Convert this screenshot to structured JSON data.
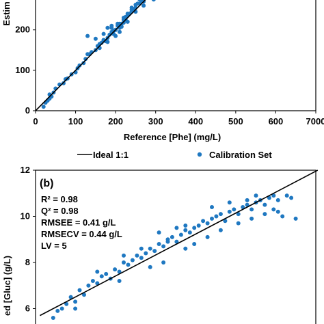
{
  "colors": {
    "point": "#1f78c1",
    "ideal_line": "#000000",
    "axis": "#000000"
  },
  "legend": {
    "ideal_label": "Ideal 1:1",
    "calibration_label": "Calibration Set"
  },
  "chart_data": [
    {
      "panel": "a",
      "type": "scatter",
      "xlabel": "Reference [Phe] (mg/L)",
      "ylabel": "Estim",
      "xlim": [
        0,
        700
      ],
      "ylim": [
        0,
        300
      ],
      "x_ticks": [
        "0",
        "100",
        "200",
        "300",
        "400",
        "500",
        "600",
        "7000"
      ],
      "y_ticks": [
        "0",
        "100",
        "200"
      ],
      "grid": false,
      "ideal_line": {
        "name": "Ideal 1:1",
        "x": [
          0,
          300
        ],
        "y": [
          0,
          300
        ]
      },
      "series": [
        {
          "name": "Calibration Set",
          "x": [
            20,
            25,
            30,
            35,
            40,
            45,
            35,
            50,
            60,
            70,
            75,
            80,
            90,
            100,
            105,
            110,
            120,
            125,
            130,
            135,
            140,
            150,
            155,
            160,
            165,
            170,
            175,
            180,
            185,
            190,
            195,
            200,
            205,
            210,
            215,
            220,
            225,
            230,
            240,
            250,
            260,
            270,
            280,
            290,
            130,
            150,
            170,
            180,
            190,
            200,
            210,
            220,
            230,
            240,
            250,
            260,
            200,
            190,
            210,
            230,
            250,
            270,
            280,
            240,
            220,
            210,
            180,
            160,
            170,
            195,
            205,
            215,
            225,
            235,
            245,
            255,
            265,
            275,
            285,
            295
          ],
          "y": [
            10,
            20,
            25,
            30,
            35,
            45,
            40,
            55,
            65,
            68,
            78,
            80,
            90,
            95,
            105,
            112,
            118,
            128,
            140,
            140,
            145,
            150,
            160,
            165,
            168,
            175,
            172,
            180,
            188,
            195,
            198,
            200,
            210,
            212,
            215,
            218,
            225,
            235,
            245,
            255,
            265,
            270,
            280,
            285,
            185,
            178,
            190,
            205,
            210,
            185,
            195,
            225,
            240,
            250,
            262,
            275,
            200,
            205,
            215,
            220,
            245,
            260,
            290,
            255,
            230,
            205,
            170,
            155,
            175,
            190,
            215,
            208,
            232,
            240,
            250,
            265,
            270,
            280,
            290,
            275
          ]
        }
      ]
    },
    {
      "panel": "b",
      "type": "scatter",
      "xlabel": "",
      "ylabel": "ed [Gluc] (g/L)",
      "ylim": [
        6,
        12
      ],
      "y_ticks": [
        "6",
        "8",
        "10",
        "12"
      ],
      "grid": false,
      "panel_label": "(b)",
      "annotations": {
        "r2": "R² = 0.98",
        "q2": "Q² = 0.98",
        "rmsee": "RMSEE = 0.41 g/L",
        "rmsecv": "RMSECV = 0.44 g/L",
        "lv": "LV = 5"
      },
      "ideal_line": {
        "name": "Ideal 1:1",
        "x": [
          5.7,
          12.0
        ],
        "y": [
          5.7,
          12.0
        ]
      },
      "series": [
        {
          "name": "Calibration Set",
          "x": [
            6.0,
            6.1,
            6.2,
            6.3,
            6.4,
            6.5,
            6.6,
            6.7,
            6.8,
            6.9,
            7.0,
            7.1,
            7.2,
            7.3,
            7.4,
            7.5,
            7.6,
            7.7,
            7.8,
            7.9,
            8.0,
            8.1,
            8.2,
            8.3,
            8.4,
            8.5,
            8.6,
            8.7,
            8.8,
            8.9,
            9.0,
            9.1,
            9.2,
            9.3,
            9.4,
            9.5,
            9.6,
            9.7,
            9.8,
            9.9,
            10.0,
            10.1,
            10.2,
            10.3,
            10.4,
            10.5,
            10.6,
            10.7,
            10.8,
            10.9,
            11.0,
            11.1,
            11.2,
            11.3,
            11.4,
            11.5,
            6.5,
            7.0,
            7.5,
            8.0,
            8.5,
            9.0,
            9.5,
            10.0,
            10.5,
            11.0,
            8.2,
            8.8,
            9.2,
            9.6,
            10.2,
            10.6,
            11.1,
            7.6,
            8.4,
            9.8,
            10.4,
            10.8,
            9.0,
            8.6
          ],
          "y": [
            5.6,
            5.9,
            6.0,
            6.2,
            6.5,
            6.3,
            6.8,
            6.6,
            7.0,
            7.2,
            7.1,
            7.4,
            7.5,
            7.3,
            7.7,
            7.6,
            8.0,
            7.9,
            8.1,
            8.3,
            8.2,
            8.4,
            8.6,
            8.5,
            8.8,
            8.7,
            9.0,
            9.1,
            8.9,
            9.2,
            9.4,
            9.3,
            9.5,
            9.6,
            9.8,
            9.7,
            9.9,
            10.0,
            10.1,
            9.8,
            10.2,
            10.3,
            10.1,
            10.4,
            10.5,
            10.3,
            10.6,
            10.7,
            10.5,
            10.8,
            10.9,
            10.7,
            10.0,
            10.9,
            10.8,
            9.9,
            6.0,
            7.6,
            7.2,
            8.6,
            8.0,
            9.6,
            9.1,
            10.6,
            9.9,
            10.3,
            7.8,
            9.5,
            8.8,
            10.4,
            9.7,
            10.9,
            10.2,
            8.3,
            9.3,
            9.4,
            10.7,
            10.1,
            8.6,
            8.9
          ]
        }
      ]
    }
  ]
}
